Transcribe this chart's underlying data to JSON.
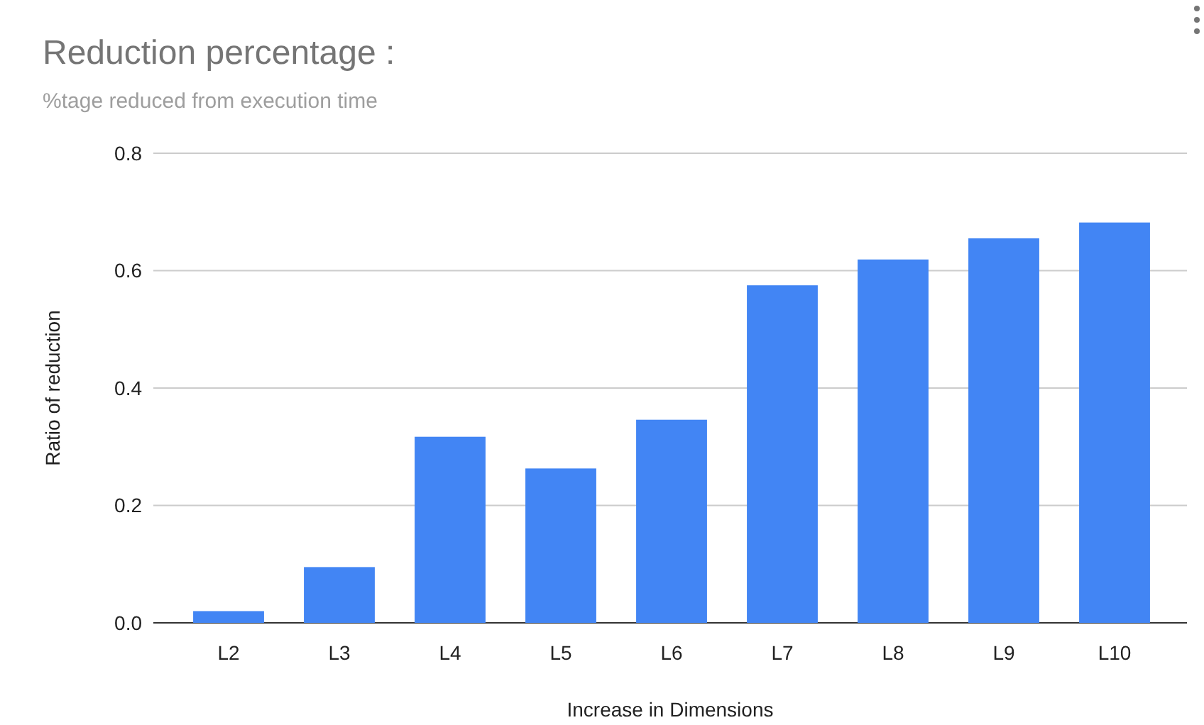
{
  "chart_data": {
    "type": "bar",
    "title": "Reduction percentage :",
    "subtitle": "%tage reduced from execution time",
    "xlabel": "Increase in Dimensions",
    "ylabel": "Ratio of reduction",
    "categories": [
      "L2",
      "L3",
      "L4",
      "L5",
      "L6",
      "L7",
      "L8",
      "L9",
      "L10"
    ],
    "values": [
      0.02,
      0.095,
      0.317,
      0.263,
      0.346,
      0.575,
      0.619,
      0.655,
      0.682
    ],
    "color": "#4285f4",
    "ylim": [
      0,
      0.8
    ],
    "yticks": [
      {
        "value": 0,
        "label": "0.0"
      },
      {
        "value": 0.2,
        "label": "0.2"
      },
      {
        "value": 0.4,
        "label": "0.4"
      },
      {
        "value": 0.6,
        "label": "0.6"
      },
      {
        "value": 0.8,
        "label": "0.8"
      }
    ],
    "grid": "y"
  }
}
